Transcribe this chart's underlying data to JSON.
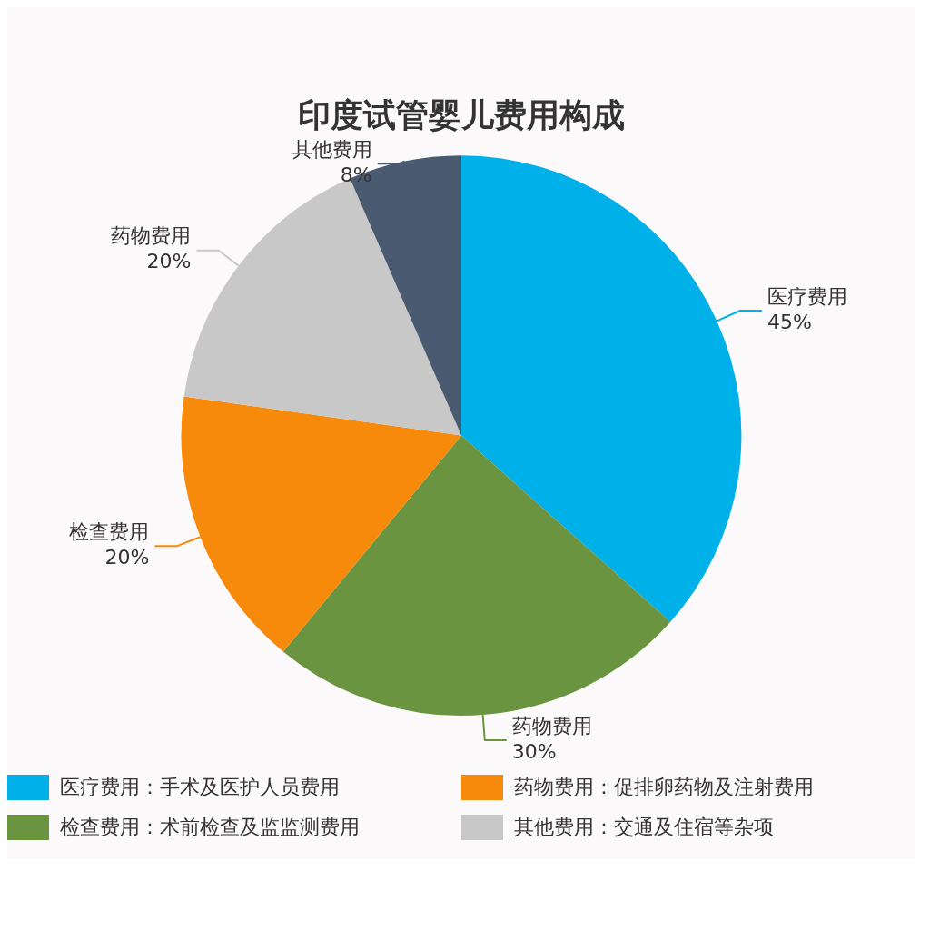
{
  "chart_data": {
    "type": "pie",
    "title": "印度试管婴儿费用构成",
    "categories": [
      "医疗费用",
      "药物费用",
      "检查费用",
      "药物费用",
      "其他费用"
    ],
    "values": [
      45,
      30,
      20,
      20,
      8
    ],
    "value_labels": [
      "45%",
      "30%",
      "20%",
      "20%",
      "8%"
    ],
    "colors": [
      "#00b0e8",
      "#6a9440",
      "#f78a0a",
      "#c8c8c8",
      "#4a5a70"
    ],
    "legend": false,
    "annotations": [
      "医疗费用：手术及医护人员费用",
      "药物费用：促排卵药物及注射费用",
      "检查费用：术前检查及监监测费用",
      "其他费用：交通及住宿等杂项"
    ]
  }
}
